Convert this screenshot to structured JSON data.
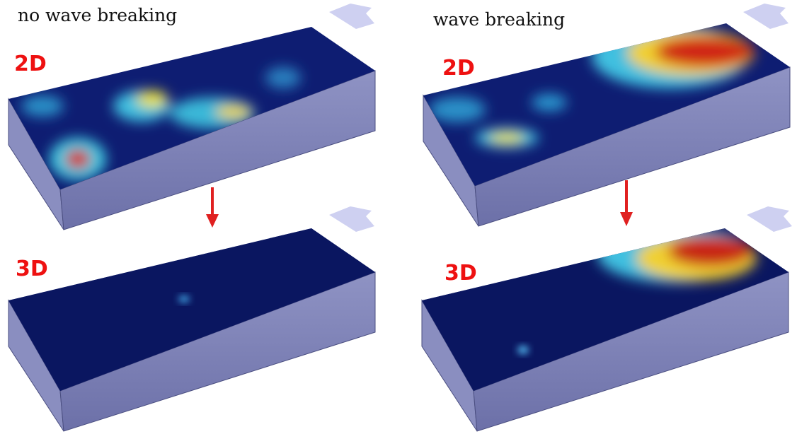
{
  "panels": [
    {
      "title": "no wave breaking",
      "top_label": "2D",
      "bottom_label": "3D"
    },
    {
      "title": "wave breaking",
      "top_label": "2D",
      "bottom_label": "3D"
    }
  ]
}
